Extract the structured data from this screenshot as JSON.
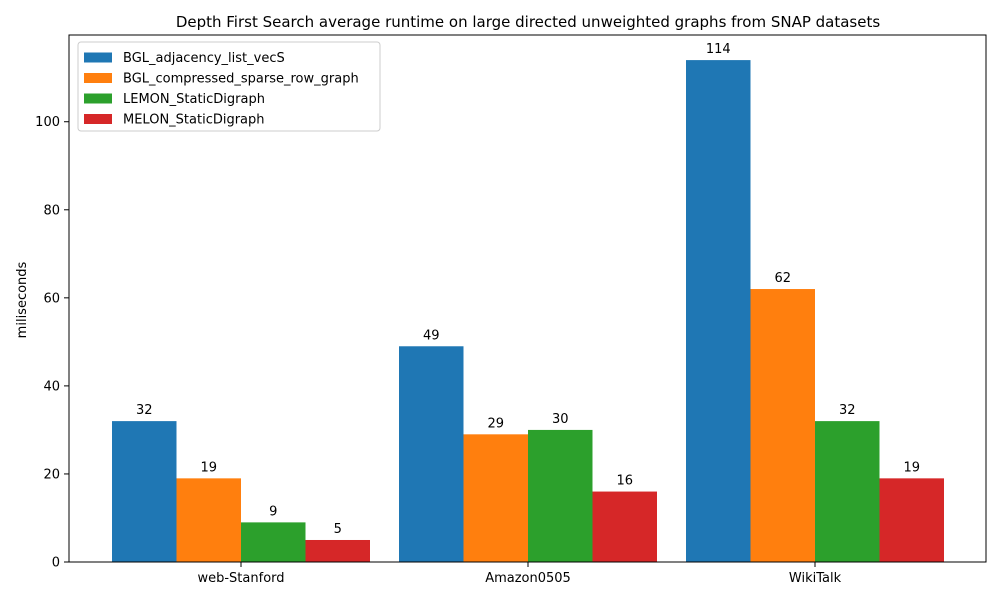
{
  "chart_data": {
    "type": "bar",
    "title": "Depth First Search average runtime on large directed unweighted graphs from SNAP datasets",
    "xlabel": "",
    "ylabel": "miliseconds",
    "categories": [
      "web-Stanford",
      "Amazon0505",
      "WikiTalk"
    ],
    "series": [
      {
        "name": "BGL_adjacency_list_vecS",
        "values": [
          32,
          49,
          114
        ],
        "color": "#1f77b4"
      },
      {
        "name": "BGL_compressed_sparse_row_graph",
        "values": [
          19,
          29,
          62
        ],
        "color": "#ff7f0e"
      },
      {
        "name": "LEMON_StaticDigraph",
        "values": [
          9,
          30,
          32
        ],
        "color": "#2ca02c"
      },
      {
        "name": "MELON_StaticDigraph",
        "values": [
          5,
          16,
          19
        ],
        "color": "#d62728"
      }
    ],
    "ylim": [
      0,
      119.7
    ],
    "yticks": [
      0,
      20,
      40,
      60,
      80,
      100
    ],
    "legend": "top-left",
    "grid": false
  }
}
